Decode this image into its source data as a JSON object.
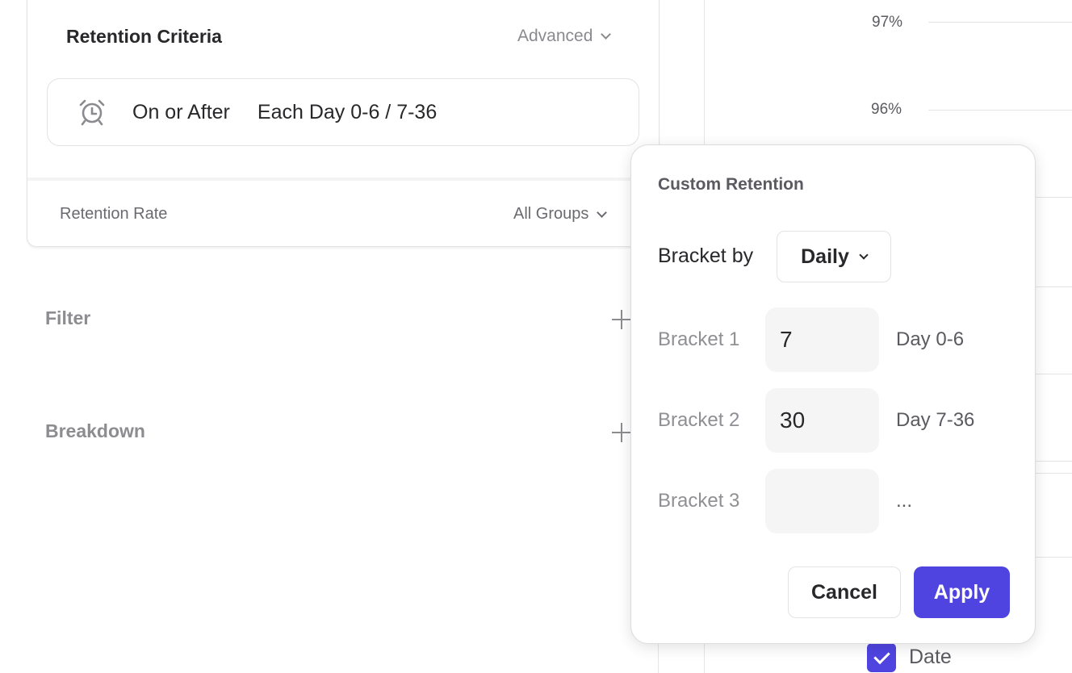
{
  "retention_criteria": {
    "title": "Retention Criteria",
    "advanced_label": "Advanced",
    "criteria_icon": "alarm-clock-icon",
    "mode": "On or After",
    "brackets_summary": "Each Day 0-6 / 7-36"
  },
  "retention_rate": {
    "label": "Retention Rate",
    "groups_label": "All Groups"
  },
  "filter": {
    "label": "Filter"
  },
  "breakdown": {
    "label": "Breakdown"
  },
  "chart": {
    "y_ticks": [
      "97%",
      "96%"
    ]
  },
  "custom_retention": {
    "title": "Custom Retention",
    "bracket_by_label": "Bracket by",
    "bracket_by_value": "Daily",
    "brackets": [
      {
        "label": "Bracket 1",
        "value": "7",
        "range": "Day 0-6"
      },
      {
        "label": "Bracket 2",
        "value": "30",
        "range": "Day 7-36"
      },
      {
        "label": "Bracket 3",
        "value": "",
        "range": "..."
      }
    ],
    "cancel_label": "Cancel",
    "apply_label": "Apply"
  },
  "legend": {
    "date_label": "Date",
    "date_checked": true
  },
  "colors": {
    "accent": "#4f44e0"
  }
}
